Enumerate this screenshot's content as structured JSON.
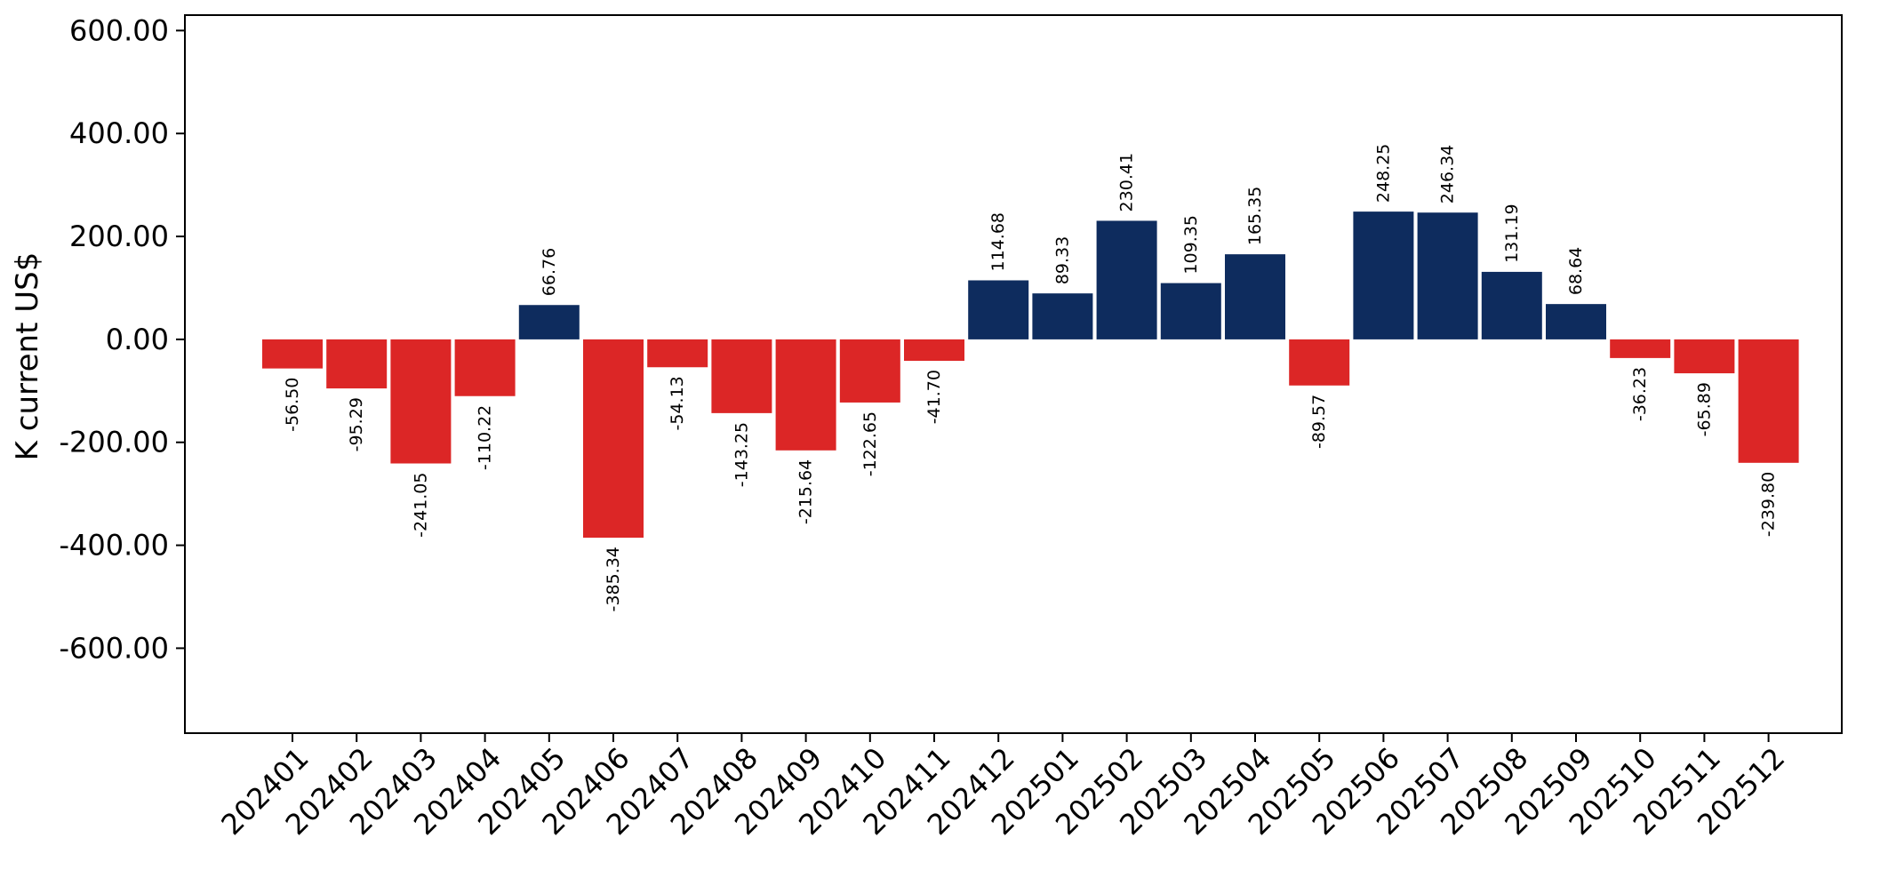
{
  "chart_data": {
    "type": "bar",
    "ylabel": "K current US$",
    "categories": [
      "202401",
      "202402",
      "202403",
      "202404",
      "202405",
      "202406",
      "202407",
      "202408",
      "202409",
      "202410",
      "202411",
      "202412",
      "202501",
      "202502",
      "202503",
      "202504",
      "202505",
      "202506",
      "202507",
      "202508",
      "202509",
      "202510",
      "202511",
      "202512"
    ],
    "values": [
      -56.5,
      -95.29,
      -241.05,
      -110.22,
      66.76,
      -385.34,
      -54.13,
      -143.25,
      -215.64,
      -122.65,
      -41.7,
      114.68,
      89.33,
      230.41,
      109.35,
      165.35,
      -89.57,
      248.25,
      246.34,
      131.19,
      68.64,
      -36.23,
      -65.89,
      -239.8
    ],
    "data_labels": [
      "-56.50",
      "-95.29",
      "-241.05",
      "-110.22",
      "66.76",
      "-385.34",
      "-54.13",
      "-143.25",
      "-215.64",
      "-122.65",
      "-41.70",
      "114.68",
      "89.33",
      "230.41",
      "109.35",
      "165.35",
      "-89.57",
      "248.25",
      "246.34",
      "131.19",
      "68.64",
      "-36.23",
      "-65.89",
      "-239.80"
    ],
    "yticks": [
      600,
      400,
      200,
      0,
      -200,
      -400,
      -600
    ],
    "ytick_labels": [
      "600.00",
      "400.00",
      "200.00",
      "0.00",
      "-200.00",
      "-400.00",
      "-600.00"
    ],
    "ylim": [
      -765,
      630
    ],
    "grid": false,
    "legend": "none",
    "colors": {
      "positive": "#0e2c5e",
      "negative": "#dc2626"
    }
  }
}
